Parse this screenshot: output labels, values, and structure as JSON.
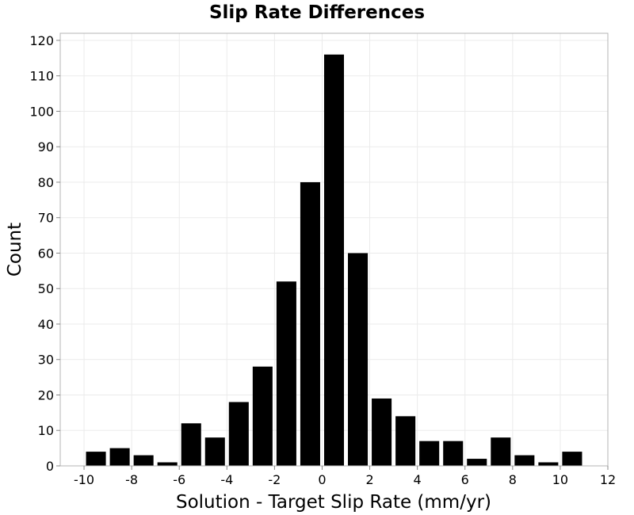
{
  "chart_data": {
    "type": "bar",
    "title": "Slip Rate Differences",
    "xlabel": "Solution - Target Slip Rate (mm/yr)",
    "ylabel": "Count",
    "xlim": [
      -11,
      12
    ],
    "ylim": [
      0,
      122
    ],
    "x_ticks": [
      -10,
      -8,
      -6,
      -4,
      -2,
      0,
      2,
      4,
      6,
      8,
      10,
      12
    ],
    "y_ticks": [
      0,
      10,
      20,
      30,
      40,
      50,
      60,
      70,
      80,
      90,
      100,
      110,
      120
    ],
    "bin_width": 1,
    "bin_centers": [
      -9.5,
      -8.5,
      -7.5,
      -6.5,
      -5.5,
      -4.5,
      -3.5,
      -2.5,
      -1.5,
      -0.5,
      0.5,
      1.5,
      2.5,
      3.5,
      4.5,
      5.5,
      6.5,
      7.5,
      8.5,
      9.5,
      10.5
    ],
    "values": [
      4,
      5,
      3,
      1,
      12,
      8,
      18,
      28,
      52,
      80,
      116,
      60,
      19,
      14,
      7,
      7,
      2,
      8,
      3,
      1,
      4
    ],
    "bar_color": "#000000",
    "grid": true
  }
}
